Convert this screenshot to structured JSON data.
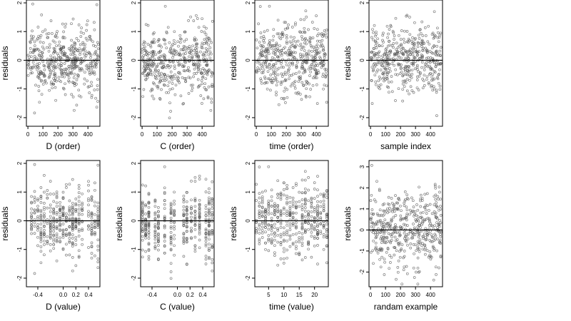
{
  "chart_data": [
    {
      "type": "scatter",
      "name": "D-order",
      "xlabel": "D (order)",
      "ylabel": "residuals",
      "xlim": [
        -10,
        480
      ],
      "ylim": [
        -2.3,
        2.1
      ],
      "xticks": [
        0,
        100,
        200,
        300,
        400
      ],
      "xtick_labels": [
        "0",
        "100",
        "200",
        "300",
        "400"
      ],
      "yticks": [
        -2,
        -1,
        0,
        1,
        2
      ],
      "ytick_labels": [
        "-2",
        "-1",
        "0",
        "1",
        "2"
      ],
      "hline": 0,
      "points_mode": "index",
      "n": 460,
      "spread": 0.58,
      "seed": 11
    },
    {
      "type": "scatter",
      "name": "C-order",
      "xlabel": "C (order)",
      "ylabel": "residuals",
      "xlim": [
        -10,
        480
      ],
      "ylim": [
        -2.3,
        2.1
      ],
      "xticks": [
        0,
        100,
        200,
        300,
        400
      ],
      "xtick_labels": [
        "0",
        "100",
        "200",
        "300",
        "400"
      ],
      "yticks": [
        -2,
        -1,
        0,
        1,
        2
      ],
      "ytick_labels": [
        "-2",
        "-1",
        "0",
        "1",
        "2"
      ],
      "hline": 0,
      "points_mode": "index",
      "n": 460,
      "spread": 0.6,
      "seed": 23
    },
    {
      "type": "scatter",
      "name": "time-order",
      "xlabel": "time (order)",
      "ylabel": "residuals",
      "xlim": [
        -10,
        480
      ],
      "ylim": [
        -2.3,
        2.1
      ],
      "xticks": [
        0,
        100,
        200,
        300,
        400
      ],
      "xtick_labels": [
        "0",
        "100",
        "200",
        "300",
        "400"
      ],
      "yticks": [
        -2,
        -1,
        0,
        1,
        2
      ],
      "ytick_labels": [
        "-2",
        "-1",
        "0",
        "1",
        "2"
      ],
      "hline": 0,
      "points_mode": "index",
      "n": 460,
      "spread": 0.62,
      "seed": 37
    },
    {
      "type": "scatter",
      "name": "sample-index",
      "xlabel": "sample index",
      "ylabel": "residuals",
      "xlim": [
        -10,
        480
      ],
      "ylim": [
        -2.3,
        2.1
      ],
      "xticks": [
        0,
        100,
        200,
        300,
        400
      ],
      "xtick_labels": [
        "0",
        "100",
        "200",
        "300",
        "400"
      ],
      "yticks": [
        -2,
        -1,
        0,
        1,
        2
      ],
      "ytick_labels": [
        "-2",
        "-1",
        "0",
        "1",
        "2"
      ],
      "hline": 0,
      "points_mode": "index",
      "n": 460,
      "spread": 0.6,
      "seed": 41
    },
    {
      "type": "scatter",
      "name": "D-value",
      "xlabel": "D (value)",
      "ylabel": "residuals",
      "xlim": [
        -0.58,
        0.58
      ],
      "ylim": [
        -2.3,
        2.1
      ],
      "xticks": [
        -0.4,
        0.0,
        0.2,
        0.4
      ],
      "xtick_labels": [
        "-0.4",
        "0.0",
        "0.2",
        "0.4"
      ],
      "yticks": [
        -2,
        -1,
        0,
        1,
        2
      ],
      "ytick_labels": [
        "-2",
        "-1",
        "0",
        "1",
        "2"
      ],
      "hline": 0,
      "points_mode": "levels",
      "levels": [
        -0.5,
        -0.45,
        -0.4,
        -0.35,
        -0.3,
        -0.25,
        -0.2,
        -0.15,
        -0.1,
        -0.05,
        0.0,
        0.05,
        0.1,
        0.15,
        0.2,
        0.25,
        0.3,
        0.4,
        0.45,
        0.5,
        0.55
      ],
      "n": 420,
      "spread": 0.58,
      "seed": 11
    },
    {
      "type": "scatter",
      "name": "C-value",
      "xlabel": "C (value)",
      "ylabel": "residuals",
      "xlim": [
        -0.58,
        0.58
      ],
      "ylim": [
        -2.3,
        2.1
      ],
      "xticks": [
        -0.4,
        0.0,
        0.2,
        0.4
      ],
      "xtick_labels": [
        "-0.4",
        "0.0",
        "0.2",
        "0.4"
      ],
      "yticks": [
        -2,
        -1,
        0,
        1,
        2
      ],
      "ytick_labels": [
        "-2",
        "-1",
        "0",
        "1",
        "2"
      ],
      "hline": 0,
      "points_mode": "levels",
      "levels": [
        -0.55,
        -0.5,
        -0.45,
        -0.35,
        -0.3,
        -0.2,
        -0.1,
        -0.05,
        0.1,
        0.15,
        0.22,
        0.28,
        0.35,
        0.45,
        0.5,
        0.55
      ],
      "n": 420,
      "spread": 0.6,
      "seed": 23
    },
    {
      "type": "scatter",
      "name": "time-value",
      "xlabel": "time (value)",
      "ylabel": "residuals",
      "xlim": [
        0.5,
        24.5
      ],
      "ylim": [
        -2.3,
        2.1
      ],
      "xticks": [
        5,
        10,
        15,
        20
      ],
      "xtick_labels": [
        "5",
        "10",
        "15",
        "20"
      ],
      "yticks": [
        -2,
        -1,
        0,
        1,
        2
      ],
      "ytick_labels": [
        "-2",
        "-1",
        "0",
        "1",
        "2"
      ],
      "hline": 0,
      "points_mode": "levels",
      "levels": [
        1,
        2,
        3,
        4,
        5,
        6,
        7,
        8,
        9,
        10,
        11,
        12,
        13,
        14,
        15,
        16,
        17,
        18,
        19,
        20,
        21,
        22,
        23,
        24
      ],
      "n": 440,
      "spread": 0.62,
      "seed": 37
    },
    {
      "type": "scatter",
      "name": "randam-example",
      "xlabel": "randam example",
      "ylabel": "residuals",
      "xlim": [
        -10,
        480
      ],
      "ylim": [
        -2.7,
        3.3
      ],
      "xticks": [
        0,
        100,
        200,
        300,
        400
      ],
      "xtick_labels": [
        "0",
        "100",
        "200",
        "300",
        "400"
      ],
      "yticks": [
        -2,
        -1,
        0,
        1,
        2,
        3
      ],
      "ytick_labels": [
        "-2",
        "-1",
        "0",
        "1",
        "2",
        "3"
      ],
      "hline": 0,
      "points_mode": "index",
      "n": 460,
      "spread": 1.0,
      "seed": 97
    }
  ]
}
